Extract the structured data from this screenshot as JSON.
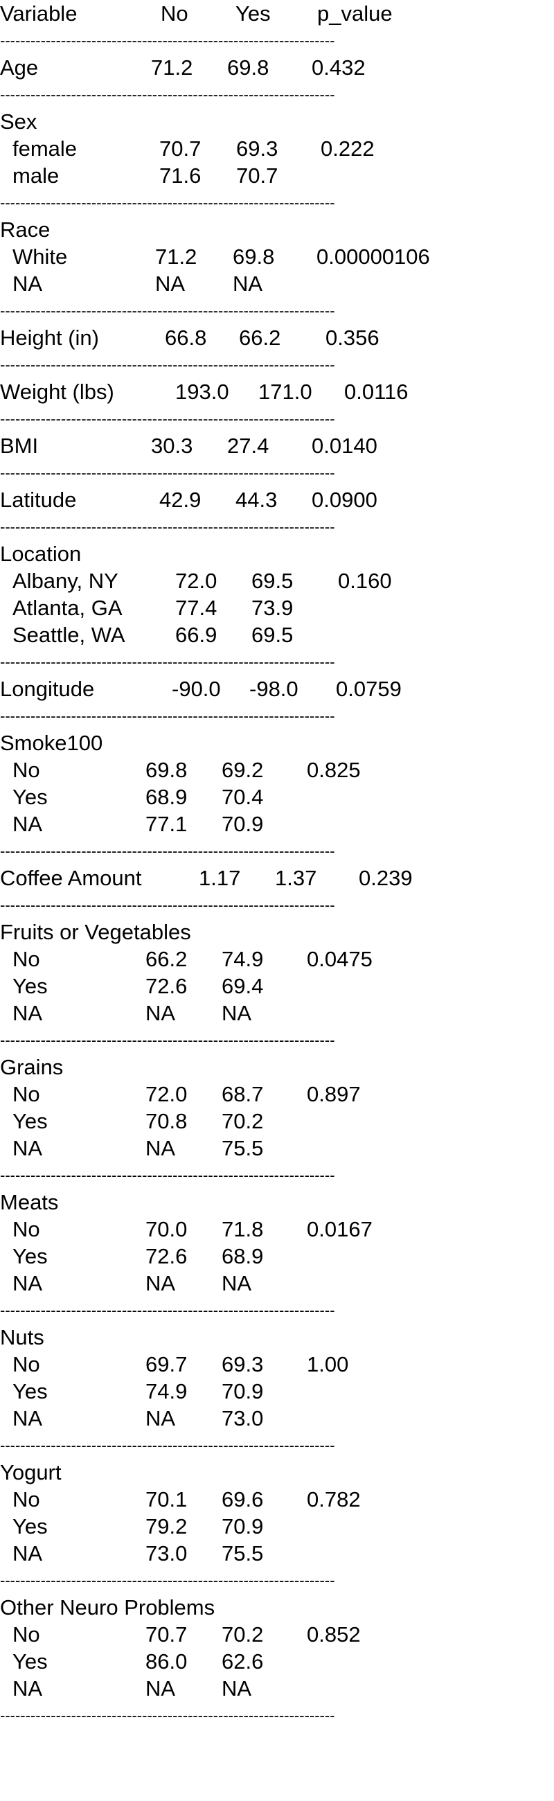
{
  "header": {
    "variable": "Variable",
    "no": "No",
    "yes": "Yes",
    "p_value": "p_value"
  },
  "separator": "------------------------------------------------------------------",
  "sections": [
    {
      "title": "Age",
      "no": "71.2",
      "yes": "69.8",
      "p": "0.432",
      "rows": []
    },
    {
      "title": "Sex",
      "rows": [
        {
          "label": "female",
          "no": "70.7",
          "yes": "69.3",
          "p": "0.222"
        },
        {
          "label": "male",
          "no": "71.6",
          "yes": "70.7",
          "p": ""
        }
      ]
    },
    {
      "title": "Race",
      "rows": [
        {
          "label": "White",
          "no": "71.2",
          "yes": "69.8",
          "p": "0.00000106"
        },
        {
          "label": "NA",
          "no": "NA",
          "yes": "NA",
          "p": ""
        }
      ]
    },
    {
      "title": "Height (in)",
      "no": "66.8",
      "yes": "66.2",
      "p": "0.356",
      "rows": []
    },
    {
      "title": "Weight (lbs)",
      "no": "193.0",
      "yes": "171.0",
      "p": "0.0116",
      "rows": []
    },
    {
      "title": "BMI",
      "no": "30.3",
      "yes": "27.4",
      "p": "0.0140",
      "rows": []
    },
    {
      "title": "Latitude",
      "no": "42.9",
      "yes": "44.3",
      "p": "0.0900",
      "rows": []
    },
    {
      "title": "Location",
      "rows": [
        {
          "label": "Albany, NY",
          "no": "72.0",
          "yes": "69.5",
          "p": "0.160"
        },
        {
          "label": "Atlanta, GA",
          "no": "77.4",
          "yes": "73.9",
          "p": ""
        },
        {
          "label": "Seattle, WA",
          "no": "66.9",
          "yes": "69.5",
          "p": ""
        }
      ]
    },
    {
      "title": "Longitude",
      "no": "-90.0",
      "yes": "-98.0",
      "p": "0.0759",
      "rows": []
    },
    {
      "title": "Smoke100",
      "rows": [
        {
          "label": "No",
          "no": "69.8",
          "yes": "69.2",
          "p": "0.825"
        },
        {
          "label": "Yes",
          "no": "68.9",
          "yes": "70.4",
          "p": ""
        },
        {
          "label": "NA",
          "no": "77.1",
          "yes": "70.9",
          "p": ""
        }
      ]
    },
    {
      "title": "Coffee Amount",
      "no": "1.17",
      "yes": "1.37",
      "p": "0.239",
      "rows": []
    },
    {
      "title": "Fruits or Vegetables",
      "rows": [
        {
          "label": "No",
          "no": "66.2",
          "yes": "74.9",
          "p": "0.0475"
        },
        {
          "label": "Yes",
          "no": "72.6",
          "yes": "69.4",
          "p": ""
        },
        {
          "label": "NA",
          "no": "NA",
          "yes": "NA",
          "p": ""
        }
      ]
    },
    {
      "title": "Grains",
      "rows": [
        {
          "label": "No",
          "no": "72.0",
          "yes": "68.7",
          "p": "0.897"
        },
        {
          "label": "Yes",
          "no": "70.8",
          "yes": "70.2",
          "p": ""
        },
        {
          "label": "NA",
          "no": "NA",
          "yes": "75.5",
          "p": ""
        }
      ]
    },
    {
      "title": "Meats",
      "rows": [
        {
          "label": "No",
          "no": "70.0",
          "yes": "71.8",
          "p": "0.0167"
        },
        {
          "label": "Yes",
          "no": "72.6",
          "yes": "68.9",
          "p": ""
        },
        {
          "label": "NA",
          "no": "NA",
          "yes": "NA",
          "p": ""
        }
      ]
    },
    {
      "title": "Nuts",
      "rows": [
        {
          "label": "No",
          "no": "69.7",
          "yes": "69.3",
          "p": "1.00"
        },
        {
          "label": "Yes",
          "no": "74.9",
          "yes": "70.9",
          "p": ""
        },
        {
          "label": "NA",
          "no": "NA",
          "yes": "73.0",
          "p": ""
        }
      ]
    },
    {
      "title": "Yogurt",
      "rows": [
        {
          "label": "No",
          "no": "70.1",
          "yes": "69.6",
          "p": "0.782"
        },
        {
          "label": "Yes",
          "no": "79.2",
          "yes": "70.9",
          "p": ""
        },
        {
          "label": "NA",
          "no": "73.0",
          "yes": "75.5",
          "p": ""
        }
      ]
    },
    {
      "title": "Other Neuro Problems",
      "rows": [
        {
          "label": "No",
          "no": "70.7",
          "yes": "70.2",
          "p": "0.852"
        },
        {
          "label": "Yes",
          "no": "86.0",
          "yes": "62.6",
          "p": ""
        },
        {
          "label": "NA",
          "no": "NA",
          "yes": "NA",
          "p": ""
        }
      ]
    }
  ]
}
